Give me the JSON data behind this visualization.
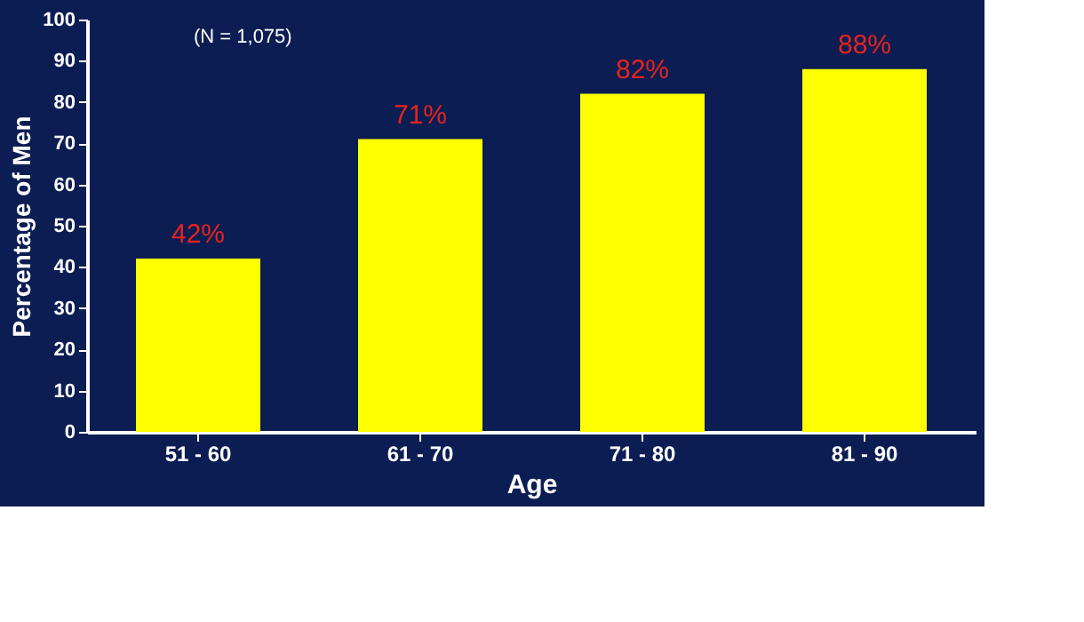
{
  "chart_data": {
    "type": "bar",
    "categories": [
      "51 - 60",
      "61 - 70",
      "71 - 80",
      "81 - 90"
    ],
    "values": [
      42,
      71,
      82,
      88
    ],
    "value_labels": [
      "42%",
      "71%",
      "82%",
      "88%"
    ],
    "color": "#ffff00",
    "xlabel": "Age",
    "ylabel": "Percentage of Men",
    "annotations": [
      "(N = 1,075)"
    ],
    "ylim": [
      0,
      100
    ],
    "yticks": [
      0,
      10,
      20,
      30,
      40,
      50,
      60,
      70,
      80,
      90,
      100
    ],
    "grid": false
  }
}
